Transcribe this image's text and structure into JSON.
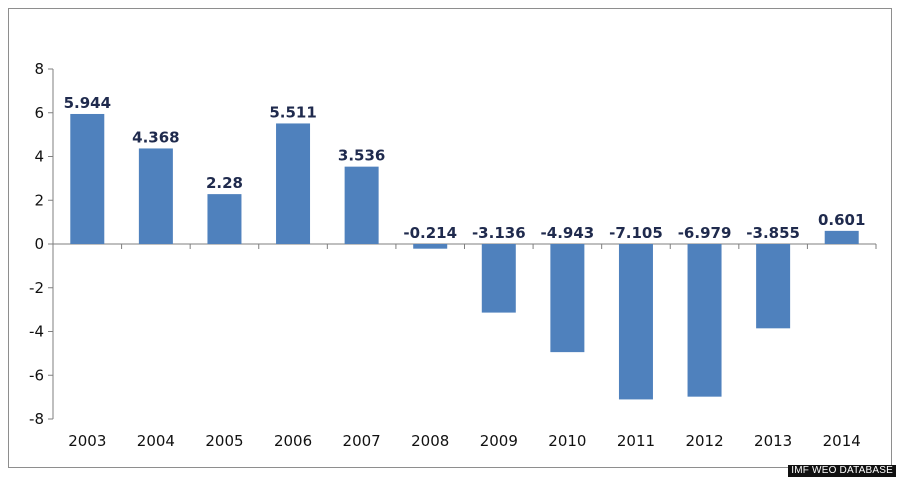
{
  "chart_data": {
    "type": "bar",
    "categories": [
      "2003",
      "2004",
      "2005",
      "2006",
      "2007",
      "2008",
      "2009",
      "2010",
      "2011",
      "2012",
      "2013",
      "2014"
    ],
    "values": [
      5.944,
      4.368,
      2.28,
      5.511,
      3.536,
      -0.214,
      -3.136,
      -4.943,
      -7.105,
      -6.979,
      -3.855,
      0.601
    ],
    "data_labels": [
      "5.944",
      "4.368",
      "2.28",
      "5.511",
      "3.536",
      "-0.214",
      "-3.136",
      "-4.943",
      "-7.105",
      "-6.979",
      "-3.855",
      "0.601"
    ],
    "title": "",
    "xlabel": "",
    "ylabel": "",
    "ylim": [
      -8,
      8
    ],
    "yticks": [
      "8",
      "6",
      "4",
      "2",
      "0",
      "-2",
      "-4",
      "-6",
      "-8"
    ],
    "grid": false,
    "legend": "none",
    "bar_color": "#4f81bd"
  },
  "source": "IMF WEO DATABASE"
}
